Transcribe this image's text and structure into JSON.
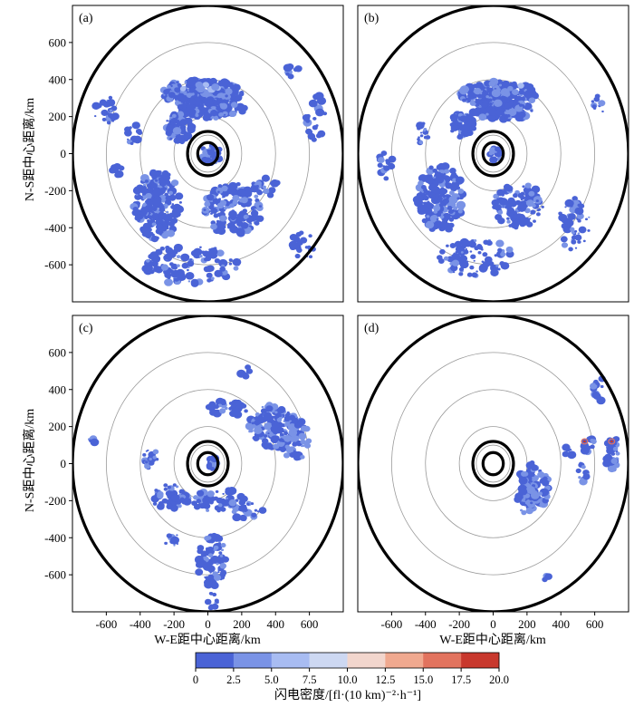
{
  "chart_data": {
    "type": "heatmap",
    "xlabel": "W-E距中心距离/km",
    "ylabel": "N-S距中心距离/km",
    "x_ticks": [
      "-600",
      "-400",
      "-200",
      "0",
      "200",
      "400",
      "600"
    ],
    "x_tick_values": [
      -600,
      -400,
      -200,
      0,
      200,
      400,
      600
    ],
    "y_ticks": [
      "600",
      "400",
      "200",
      "0",
      "-200",
      "-400",
      "-600"
    ],
    "y_tick_values": [
      600,
      400,
      200,
      0,
      -200,
      -400,
      -600
    ],
    "xlim": [
      -800,
      800
    ],
    "ylim": [
      -800,
      800
    ],
    "range_rings_km": [
      100,
      200,
      400,
      600
    ],
    "bold_rings_km": [
      60,
      120,
      800
    ],
    "colorbar": {
      "label": "闪电密度/[fl·(10 km)⁻²·h⁻¹]",
      "ticks": [
        "0",
        "2.5",
        "5.0",
        "7.5",
        "10.0",
        "12.5",
        "15.0",
        "17.5",
        "20.0"
      ],
      "colors": [
        "#4a63d6",
        "#7a93e6",
        "#a8bcf2",
        "#cdd8f2",
        "#f2d6cd",
        "#f0a98f",
        "#e2735e",
        "#c8382d"
      ]
    },
    "panels": [
      {
        "label": "(a)",
        "regions": [
          {
            "x": -40,
            "y": 330,
            "rx": 240,
            "ry": 70,
            "level": 0.35,
            "n": 240
          },
          {
            "x": 20,
            "y": 240,
            "rx": 200,
            "ry": 50,
            "level": 0.3,
            "n": 160
          },
          {
            "x": -10,
            "y": 350,
            "rx": 160,
            "ry": 30,
            "level": 1.4,
            "n": 10
          },
          {
            "x": -170,
            "y": 140,
            "rx": 80,
            "ry": 80,
            "level": 0.3,
            "n": 80
          },
          {
            "x": -300,
            "y": -280,
            "rx": 140,
            "ry": 190,
            "level": 0.3,
            "n": 220
          },
          {
            "x": 150,
            "y": -300,
            "rx": 170,
            "ry": 140,
            "level": 0.3,
            "n": 150
          },
          {
            "x": -100,
            "y": -600,
            "rx": 280,
            "ry": 110,
            "level": 0.3,
            "n": 110
          },
          {
            "x": 20,
            "y": 0,
            "rx": 55,
            "ry": 55,
            "level": 0.4,
            "n": 35
          },
          {
            "x": -600,
            "y": 230,
            "rx": 70,
            "ry": 80,
            "level": 0.3,
            "n": 28
          },
          {
            "x": -540,
            "y": -90,
            "rx": 40,
            "ry": 30,
            "level": 0.3,
            "n": 8
          },
          {
            "x": 640,
            "y": 200,
            "rx": 60,
            "ry": 130,
            "level": 0.3,
            "n": 25
          },
          {
            "x": 560,
            "y": -500,
            "rx": 70,
            "ry": 80,
            "level": 0.3,
            "n": 20
          },
          {
            "x": -440,
            "y": 100,
            "rx": 40,
            "ry": 60,
            "level": 0.3,
            "n": 14
          },
          {
            "x": 340,
            "y": -180,
            "rx": 80,
            "ry": 50,
            "level": 0.3,
            "n": 22
          },
          {
            "x": 500,
            "y": 450,
            "rx": 40,
            "ry": 40,
            "level": 0.3,
            "n": 8
          }
        ]
      },
      {
        "label": "(b)",
        "regions": [
          {
            "x": 30,
            "y": 320,
            "rx": 230,
            "ry": 70,
            "level": 0.35,
            "n": 220
          },
          {
            "x": 60,
            "y": 230,
            "rx": 180,
            "ry": 45,
            "level": 0.3,
            "n": 130
          },
          {
            "x": 80,
            "y": 350,
            "rx": 140,
            "ry": 30,
            "level": 1.3,
            "n": 9
          },
          {
            "x": -180,
            "y": 150,
            "rx": 70,
            "ry": 70,
            "level": 0.3,
            "n": 60
          },
          {
            "x": -310,
            "y": -240,
            "rx": 140,
            "ry": 180,
            "level": 0.3,
            "n": 200
          },
          {
            "x": 150,
            "y": -280,
            "rx": 150,
            "ry": 120,
            "level": 0.3,
            "n": 110
          },
          {
            "x": 480,
            "y": -380,
            "rx": 100,
            "ry": 140,
            "level": 0.3,
            "n": 45
          },
          {
            "x": -100,
            "y": -560,
            "rx": 220,
            "ry": 100,
            "level": 0.3,
            "n": 80
          },
          {
            "x": -640,
            "y": -60,
            "rx": 50,
            "ry": 80,
            "level": 0.3,
            "n": 14
          },
          {
            "x": -420,
            "y": 110,
            "rx": 40,
            "ry": 60,
            "level": 0.3,
            "n": 14
          },
          {
            "x": 20,
            "y": 0,
            "rx": 40,
            "ry": 40,
            "level": 0.4,
            "n": 15
          },
          {
            "x": 620,
            "y": 270,
            "rx": 40,
            "ry": 60,
            "level": 0.3,
            "n": 10
          }
        ]
      },
      {
        "label": "(c)",
        "regions": [
          {
            "x": 400,
            "y": 200,
            "rx": 160,
            "ry": 120,
            "level": 0.4,
            "n": 140
          },
          {
            "x": 520,
            "y": 130,
            "rx": 90,
            "ry": 110,
            "level": 0.5,
            "n": 60
          },
          {
            "x": 120,
            "y": 300,
            "rx": 120,
            "ry": 40,
            "level": 0.3,
            "n": 35
          },
          {
            "x": -340,
            "y": 30,
            "rx": 40,
            "ry": 60,
            "level": 0.3,
            "n": 18
          },
          {
            "x": -220,
            "y": -180,
            "rx": 110,
            "ry": 70,
            "level": 0.3,
            "n": 60
          },
          {
            "x": 80,
            "y": -200,
            "rx": 180,
            "ry": 60,
            "level": 0.3,
            "n": 60
          },
          {
            "x": 20,
            "y": -520,
            "rx": 90,
            "ry": 150,
            "level": 0.3,
            "n": 80
          },
          {
            "x": 20,
            "y": -740,
            "rx": 40,
            "ry": 40,
            "level": 0.3,
            "n": 10
          },
          {
            "x": 25,
            "y": 0,
            "rx": 35,
            "ry": 35,
            "level": 0.4,
            "n": 18
          },
          {
            "x": -200,
            "y": -420,
            "rx": 50,
            "ry": 40,
            "level": 0.3,
            "n": 10
          },
          {
            "x": 240,
            "y": -260,
            "rx": 90,
            "ry": 50,
            "level": 0.3,
            "n": 20
          },
          {
            "x": -680,
            "y": 130,
            "rx": 20,
            "ry": 20,
            "level": 0.3,
            "n": 4
          },
          {
            "x": 220,
            "y": 500,
            "rx": 40,
            "ry": 30,
            "level": 0.3,
            "n": 6
          }
        ]
      },
      {
        "label": "(d)",
        "regions": [
          {
            "x": 240,
            "y": -120,
            "rx": 90,
            "ry": 130,
            "level": 0.4,
            "n": 90
          },
          {
            "x": 200,
            "y": -200,
            "rx": 60,
            "ry": 70,
            "level": 0.8,
            "n": 25
          },
          {
            "x": 700,
            "y": 60,
            "rx": 40,
            "ry": 110,
            "level": 0.4,
            "n": 40
          },
          {
            "x": 560,
            "y": 100,
            "rx": 40,
            "ry": 40,
            "level": 0.5,
            "n": 12
          },
          {
            "x": 530,
            "y": -50,
            "rx": 30,
            "ry": 70,
            "level": 0.3,
            "n": 10
          },
          {
            "x": 620,
            "y": 400,
            "rx": 40,
            "ry": 80,
            "level": 0.3,
            "n": 12
          },
          {
            "x": 440,
            "y": 60,
            "rx": 30,
            "ry": 30,
            "level": 0.3,
            "n": 5
          },
          {
            "x": 310,
            "y": -610,
            "rx": 20,
            "ry": 20,
            "level": 0.3,
            "n": 3
          }
        ],
        "hotspots": [
          [
            540,
            120
          ],
          [
            700,
            120
          ]
        ]
      }
    ]
  }
}
